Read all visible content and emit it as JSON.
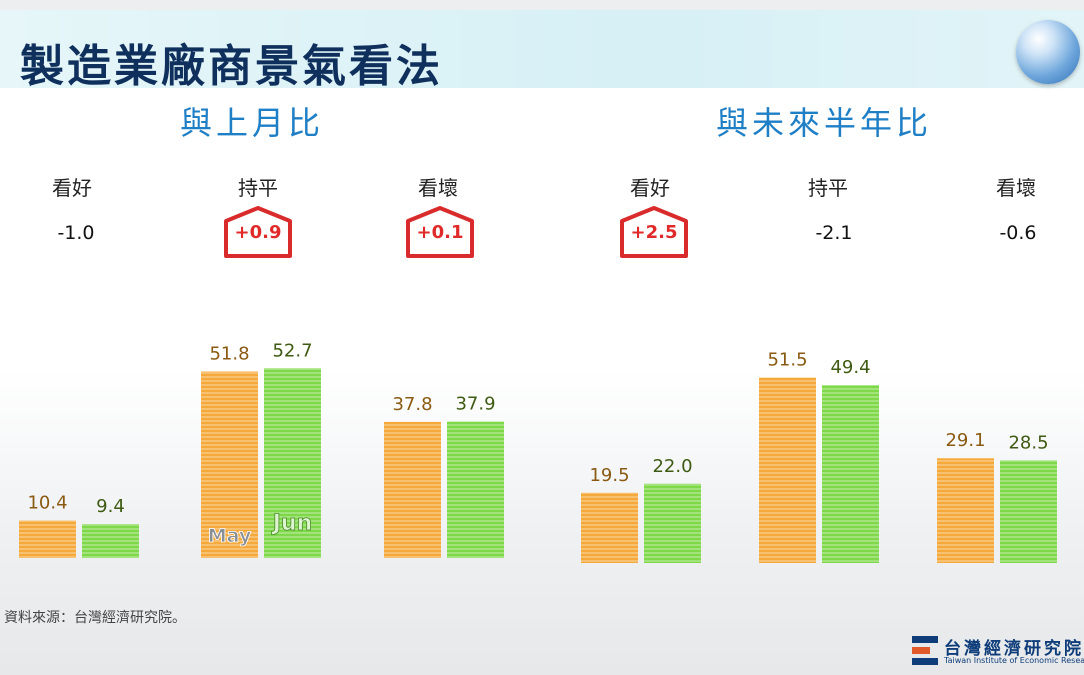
{
  "title": "製造業廠商景氣看法",
  "sections": [
    {
      "label": "與上月比"
    },
    {
      "label": "與未來半年比"
    }
  ],
  "changes": [
    {
      "category": "看好",
      "value": "-1.0",
      "highlight": false
    },
    {
      "category": "持平",
      "value": "+0.9",
      "highlight": true
    },
    {
      "category": "看壞",
      "value": "+0.1",
      "highlight": true
    },
    {
      "category": "看好",
      "value": "+2.5",
      "highlight": true
    },
    {
      "category": "持平",
      "value": "-2.1",
      "highlight": false
    },
    {
      "category": "看壞",
      "value": "-0.6",
      "highlight": false
    }
  ],
  "chart_data": {
    "type": "bar",
    "groups": [
      "與上月比",
      "與未來半年比"
    ],
    "categories": [
      "看好",
      "持平",
      "看壞",
      "看好",
      "持平",
      "看壞"
    ],
    "series": [
      {
        "name": "May",
        "values": [
          10.4,
          51.8,
          37.8,
          19.5,
          51.5,
          29.1
        ],
        "color": "#f5a93a"
      },
      {
        "name": "Jun",
        "values": [
          9.4,
          52.7,
          37.9,
          22.0,
          49.4,
          28.5
        ],
        "color": "#7ed84a"
      }
    ],
    "data_labels": {
      "May": [
        "10.4",
        "51.8",
        "37.8",
        "19.5",
        "51.5",
        "29.1"
      ],
      "Jun": [
        "9.4",
        "52.7",
        "37.9",
        "22.0",
        "49.4",
        "28.5"
      ]
    },
    "label_colors": {
      "May": "#8a5a12",
      "Jun": "#3f5a12"
    },
    "legend_labels": [
      "May",
      "Jun"
    ],
    "legend_placement": "inside-bars",
    "grid": false
  },
  "source": "資料來源：台灣經濟研究院。",
  "logo": {
    "name_cn": "台灣經濟研究院",
    "name_en": "Taiwan Institute of Economic Research"
  }
}
